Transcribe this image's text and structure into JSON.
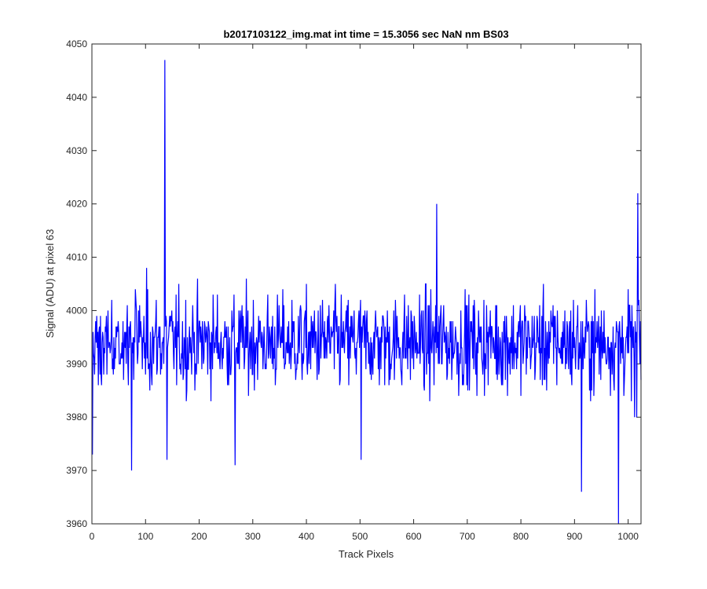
{
  "chart_data": {
    "type": "line",
    "title": "b2017103122_img.mat int time = 15.3056 sec  NaN nm BS03",
    "xlabel": "Track Pixels",
    "ylabel": "Signal (ADU) at pixel 63",
    "xlim": [
      0,
      1024
    ],
    "ylim": [
      3960,
      4050
    ],
    "xticks": [
      0,
      100,
      200,
      300,
      400,
      500,
      600,
      700,
      800,
      900,
      1000
    ],
    "yticks": [
      3960,
      3970,
      3980,
      3990,
      4000,
      4010,
      4020,
      4030,
      4040,
      4050
    ],
    "grid": false,
    "legend": "none",
    "line_color": "#0000ff",
    "noise_profile": {
      "n_points": 1024,
      "x_start": 1,
      "baseline": 3994,
      "amplitude": 8
    },
    "features": [
      {
        "x": 1,
        "y": 3973
      },
      {
        "x": 136,
        "y": 4047
      },
      {
        "x": 140,
        "y": 3972
      },
      {
        "x": 74,
        "y": 3970
      },
      {
        "x": 267,
        "y": 3971
      },
      {
        "x": 502,
        "y": 3972
      },
      {
        "x": 643,
        "y": 4020
      },
      {
        "x": 913,
        "y": 3966
      },
      {
        "x": 982,
        "y": 3960
      },
      {
        "x": 1018,
        "y": 4022
      },
      {
        "x": 1012,
        "y": 3980
      },
      {
        "x": 1016,
        "y": 3980
      }
    ]
  }
}
